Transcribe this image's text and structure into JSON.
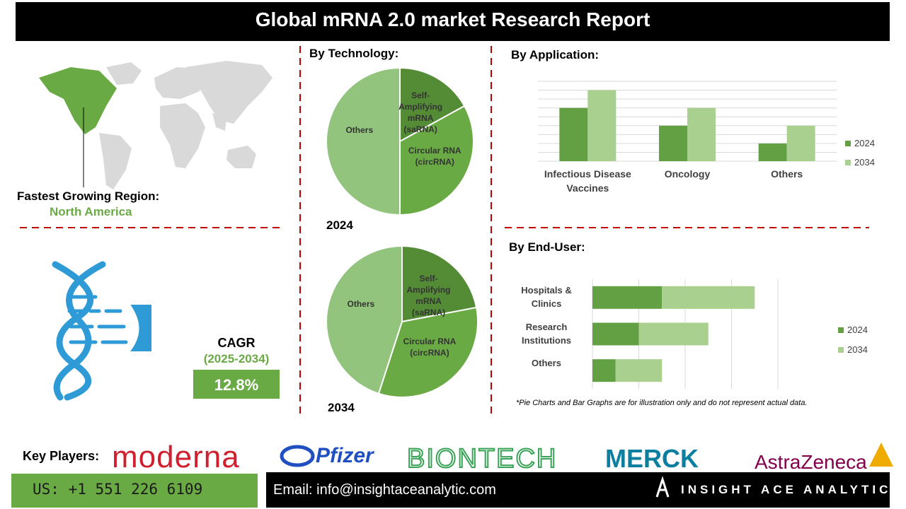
{
  "header": {
    "title": "Global mRNA 2.0 market Research Report"
  },
  "region": {
    "label": "Fastest Growing Region:",
    "value": "North America"
  },
  "cagr": {
    "label": "CAGR",
    "period": "(2025-2034)",
    "value": "12.8%"
  },
  "chart_data": [
    {
      "type": "pie",
      "title": "By Technology:",
      "subtitle": "2024",
      "categories": [
        "Self-Amplifying mRNA (saRNA)",
        "Circular RNA (circRNA)",
        "Others"
      ],
      "values": [
        17,
        33,
        50
      ],
      "colors": [
        "#548c36",
        "#6aaa45",
        "#93c47d"
      ]
    },
    {
      "type": "pie",
      "subtitle": "2034",
      "categories": [
        "Self-Amplifying mRNA (saRNA)",
        "Circular RNA (circRNA)",
        "Others"
      ],
      "values": [
        22,
        33,
        45
      ],
      "colors": [
        "#548c36",
        "#6aaa45",
        "#93c47d"
      ]
    },
    {
      "type": "bar",
      "title": "By Application:",
      "orientation": "vertical",
      "categories": [
        "Infectious Disease Vaccines",
        "Oncology",
        "Others"
      ],
      "series": [
        {
          "name": "2024",
          "color": "#62a043",
          "values": [
            6,
            4,
            2
          ]
        },
        {
          "name": "2034",
          "color": "#a9d08e",
          "values": [
            8,
            6,
            4
          ]
        }
      ],
      "ylim": [
        0,
        9
      ],
      "yticks": [
        0,
        1,
        2,
        3,
        4,
        5,
        6,
        7,
        8,
        9
      ],
      "grid": true,
      "legend": "right"
    },
    {
      "type": "bar",
      "title": "By End-User:",
      "orientation": "horizontal",
      "stacked": true,
      "categories": [
        "Hospitals & Clinics",
        "Research Institutions",
        "Others"
      ],
      "series": [
        {
          "name": "2024",
          "color": "#62a043",
          "values": [
            1.5,
            1,
            0.5
          ]
        },
        {
          "name": "2034",
          "color": "#a9d08e",
          "values": [
            2,
            1.5,
            1
          ]
        }
      ],
      "xlim": [
        0,
        4
      ],
      "xticks": [
        0,
        1,
        2,
        3,
        4
      ],
      "grid": true,
      "legend": "right"
    }
  ],
  "note": "*Pie Charts and Bar Graphs are for illustration only and do not represent actual data.",
  "key_players": {
    "label": "Key Players:",
    "companies": [
      "moderna",
      "Pfizer",
      "BIONTECH",
      "MERCK",
      "AstraZeneca"
    ]
  },
  "footer": {
    "phone": "US: +1 551 226 6109",
    "email": "Email: info@insightaceanalytic.com",
    "brand": "INSIGHT ACE ANALYTIC"
  }
}
